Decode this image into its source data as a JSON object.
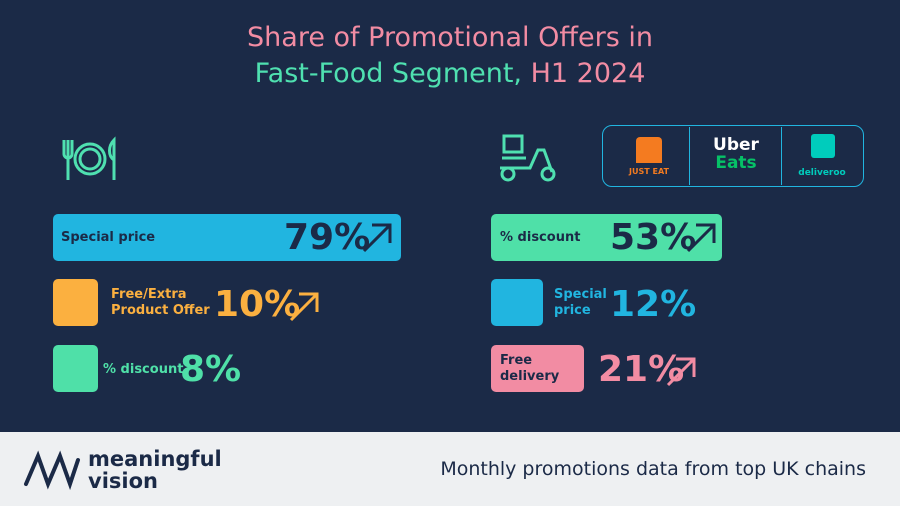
{
  "title": {
    "line1": "Share of Promotional Offers in",
    "line2a": "Fast-Food Segment,",
    "line2b": "H1 2024"
  },
  "left_panel": {
    "items": [
      {
        "label": "Special price",
        "value": "79%"
      },
      {
        "label": "Free/Extra Product Offer",
        "value": "10%"
      },
      {
        "label": "% discount",
        "value": "8%"
      }
    ]
  },
  "right_panel": {
    "logos": [
      "JUST EAT",
      "Uber",
      "Eats",
      "deliveroo"
    ],
    "items": [
      {
        "label": "% discount",
        "value": "53%"
      },
      {
        "label": "Special price",
        "value": "12%"
      },
      {
        "label": "Free delivery",
        "value": "21%"
      }
    ]
  },
  "footer": {
    "brand": [
      "meaningful",
      "vision"
    ],
    "tagline": "Monthly promotions data from top UK chains"
  }
}
